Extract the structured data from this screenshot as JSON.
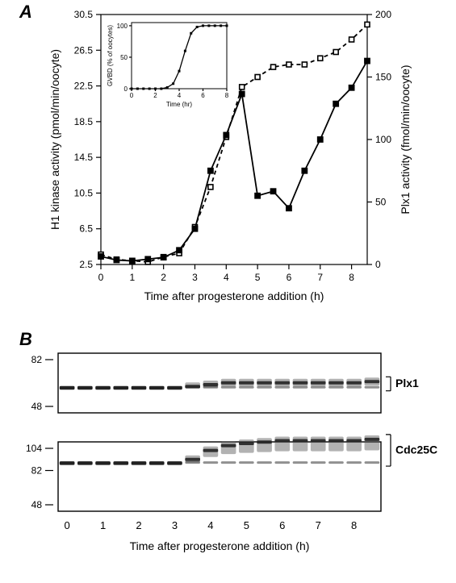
{
  "panels": {
    "A": {
      "label": "A"
    },
    "B": {
      "label": "B"
    }
  },
  "chartA": {
    "type": "line",
    "x_label": "Time after progesterone addition (h)",
    "left_y_label": "H1 kinase activity  (pmol/min/oocyte)",
    "right_y_label": "Plx1  activity  (fmol/min/oocyte)",
    "x_ticks": [
      0,
      1,
      2,
      3,
      4,
      5,
      6,
      7,
      8
    ],
    "xlim": [
      0,
      8.5
    ],
    "left_ylim": [
      2.5,
      30.5
    ],
    "left_y_ticks": [
      2.5,
      6.5,
      10.5,
      14.5,
      18.5,
      22.5,
      26.5,
      30.5
    ],
    "right_ylim": [
      0,
      200
    ],
    "right_y_ticks": [
      0,
      50,
      100,
      150,
      200
    ],
    "tick_fontsize": 12,
    "label_fontsize": 14,
    "marker_size": 6,
    "inset": {
      "title": "",
      "y_label": "GVBD (% of oocytes)",
      "x_label": "Time (hr)",
      "x_ticks": [
        0,
        2,
        4,
        6,
        8
      ],
      "y_ticks": [
        0,
        50,
        100
      ],
      "xlim": [
        0,
        8
      ],
      "ylim": [
        0,
        105
      ],
      "points": [
        {
          "x": 0,
          "y": 0
        },
        {
          "x": 0.5,
          "y": 0
        },
        {
          "x": 1,
          "y": 0
        },
        {
          "x": 1.5,
          "y": 0
        },
        {
          "x": 2,
          "y": 0
        },
        {
          "x": 2.5,
          "y": 0
        },
        {
          "x": 3,
          "y": 2
        },
        {
          "x": 3.5,
          "y": 8
        },
        {
          "x": 4,
          "y": 28
        },
        {
          "x": 4.5,
          "y": 60
        },
        {
          "x": 5,
          "y": 88
        },
        {
          "x": 5.5,
          "y": 98
        },
        {
          "x": 6,
          "y": 100
        },
        {
          "x": 6.5,
          "y": 100
        },
        {
          "x": 7,
          "y": 100
        },
        {
          "x": 7.5,
          "y": 100
        },
        {
          "x": 8,
          "y": 100
        }
      ],
      "label_fontsize": 8,
      "tick_fontsize": 8,
      "marker_size": 3,
      "line_color": "#000000",
      "marker_color": "#000000"
    },
    "series_h1": {
      "name": "H1 kinase",
      "axis": "left",
      "marker": "filled-square",
      "line_style": "solid",
      "line_color": "#000000",
      "marker_color": "#000000",
      "points": [
        {
          "x": 0,
          "y": 3.4
        },
        {
          "x": 0.5,
          "y": 3.0
        },
        {
          "x": 1,
          "y": 2.9
        },
        {
          "x": 1.5,
          "y": 3.1
        },
        {
          "x": 2,
          "y": 3.3
        },
        {
          "x": 2.5,
          "y": 4.1
        },
        {
          "x": 3,
          "y": 6.5
        },
        {
          "x": 3.5,
          "y": 13.0
        },
        {
          "x": 4,
          "y": 17.0
        },
        {
          "x": 4.5,
          "y": 21.6
        },
        {
          "x": 5,
          "y": 10.2
        },
        {
          "x": 5.5,
          "y": 10.7
        },
        {
          "x": 6,
          "y": 8.8
        },
        {
          "x": 6.5,
          "y": 13.0
        },
        {
          "x": 7,
          "y": 16.5
        },
        {
          "x": 7.5,
          "y": 20.5
        },
        {
          "x": 8,
          "y": 22.3
        },
        {
          "x": 8.5,
          "y": 25.3
        }
      ]
    },
    "series_plx1": {
      "name": "Plx1",
      "axis": "right",
      "marker": "open-square",
      "line_style": "dashed",
      "line_color": "#000000",
      "marker_color": "#ffffff",
      "points": [
        {
          "x": 0,
          "y": 8
        },
        {
          "x": 0.5,
          "y": 4
        },
        {
          "x": 1,
          "y": 3
        },
        {
          "x": 1.5,
          "y": 2
        },
        {
          "x": 2,
          "y": 6
        },
        {
          "x": 2.5,
          "y": 9
        },
        {
          "x": 3,
          "y": 30
        },
        {
          "x": 3.5,
          "y": 62
        },
        {
          "x": 4,
          "y": 102
        },
        {
          "x": 4.5,
          "y": 142
        },
        {
          "x": 5,
          "y": 150
        },
        {
          "x": 5.5,
          "y": 158
        },
        {
          "x": 6,
          "y": 160
        },
        {
          "x": 6.5,
          "y": 160
        },
        {
          "x": 7,
          "y": 165
        },
        {
          "x": 7.5,
          "y": 170
        },
        {
          "x": 8,
          "y": 180
        },
        {
          "x": 8.5,
          "y": 192
        }
      ]
    }
  },
  "panelB": {
    "x_label": "Time after progesterone addition (h)",
    "x_ticks": [
      0,
      1,
      2,
      3,
      4,
      5,
      6,
      7,
      8
    ],
    "tick_fontsize": 13,
    "label_fontsize": 14,
    "blots": [
      {
        "name": "Plx1",
        "markers": [
          82,
          48
        ],
        "band_y": 0.55,
        "shift_profile": [
          0,
          0,
          0,
          0,
          0,
          0,
          0,
          0.02,
          0.05,
          0.08,
          0.08,
          0.08,
          0.08,
          0.08,
          0.08,
          0.08,
          0.08,
          0.1
        ],
        "doublet_from": 7
      },
      {
        "name": "Cdc25C",
        "markers": [
          104,
          82,
          48
        ],
        "band_y": 0.28,
        "shift_profile": [
          0,
          0,
          0,
          0,
          0,
          0,
          0,
          0.05,
          0.18,
          0.25,
          0.28,
          0.3,
          0.32,
          0.32,
          0.32,
          0.32,
          0.32,
          0.34
        ],
        "doublet_from": 7
      }
    ]
  },
  "colors": {
    "background": "#ffffff",
    "ink": "#000000",
    "blot_bg": "#f4f4f2"
  }
}
